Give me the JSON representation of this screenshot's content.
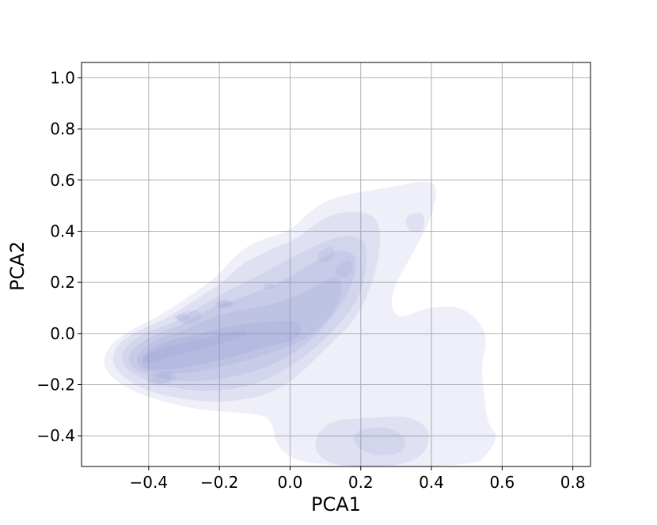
{
  "chart_data": {
    "type": "kde-contour",
    "title": "",
    "xlabel": "PCA1",
    "ylabel": "PCA2",
    "xlim": [
      -0.59,
      0.85
    ],
    "ylim": [
      -0.52,
      1.06
    ],
    "xticks": [
      -0.4,
      -0.2,
      0.0,
      0.2,
      0.4,
      0.6,
      0.8
    ],
    "xtick_labels": [
      "−0.4",
      "−0.2",
      "0.0",
      "0.2",
      "0.4",
      "0.6",
      "0.8"
    ],
    "yticks": [
      -0.4,
      -0.2,
      0.0,
      0.2,
      0.4,
      0.6,
      0.8,
      1.0
    ],
    "ytick_labels": [
      "−0.4",
      "−0.2",
      "0.0",
      "0.2",
      "0.4",
      "0.6",
      "0.8",
      "1.0"
    ],
    "grid": true,
    "fill_color": "#8a8fcc",
    "level_opacity": 0.14,
    "levels": [
      {
        "regions": [
          [
            [
              -0.52,
              -0.06
            ],
            [
              -0.47,
              0.0
            ],
            [
              -0.38,
              0.06
            ],
            [
              -0.28,
              0.15
            ],
            [
              -0.2,
              0.23
            ],
            [
              -0.16,
              0.3
            ],
            [
              -0.1,
              0.36
            ],
            [
              0.0,
              0.4
            ],
            [
              0.05,
              0.47
            ],
            [
              0.1,
              0.52
            ],
            [
              0.18,
              0.55
            ],
            [
              0.28,
              0.57
            ],
            [
              0.38,
              0.6
            ],
            [
              0.42,
              0.58
            ],
            [
              0.4,
              0.45
            ],
            [
              0.35,
              0.32
            ],
            [
              0.28,
              0.15
            ],
            [
              0.3,
              0.05
            ],
            [
              0.38,
              0.1
            ],
            [
              0.47,
              0.11
            ],
            [
              0.53,
              0.06
            ],
            [
              0.56,
              -0.02
            ],
            [
              0.54,
              -0.12
            ],
            [
              0.55,
              -0.25
            ],
            [
              0.56,
              -0.36
            ],
            [
              0.59,
              -0.4
            ],
            [
              0.56,
              -0.47
            ],
            [
              0.52,
              -0.52
            ],
            [
              0.05,
              -0.52
            ],
            [
              -0.04,
              -0.45
            ],
            [
              -0.05,
              -0.33
            ],
            [
              -0.12,
              -0.31
            ],
            [
              -0.25,
              -0.3
            ],
            [
              -0.35,
              -0.27
            ],
            [
              -0.46,
              -0.22
            ],
            [
              -0.53,
              -0.14
            ]
          ]
        ]
      },
      {
        "regions": [
          [
            [
              -0.5,
              -0.06
            ],
            [
              -0.45,
              0.0
            ],
            [
              -0.36,
              0.05
            ],
            [
              -0.27,
              0.13
            ],
            [
              -0.19,
              0.2
            ],
            [
              -0.14,
              0.27
            ],
            [
              -0.07,
              0.32
            ],
            [
              0.02,
              0.37
            ],
            [
              0.08,
              0.44
            ],
            [
              0.15,
              0.48
            ],
            [
              0.24,
              0.47
            ],
            [
              0.26,
              0.38
            ],
            [
              0.24,
              0.22
            ],
            [
              0.19,
              0.06
            ],
            [
              0.1,
              -0.06
            ],
            [
              0.02,
              -0.17
            ],
            [
              -0.06,
              -0.24
            ],
            [
              -0.18,
              -0.27
            ],
            [
              -0.3,
              -0.26
            ],
            [
              -0.42,
              -0.22
            ],
            [
              -0.5,
              -0.14
            ]
          ],
          [
            [
              0.1,
              -0.34
            ],
            [
              0.22,
              -0.33
            ],
            [
              0.34,
              -0.32
            ],
            [
              0.4,
              -0.38
            ],
            [
              0.38,
              -0.48
            ],
            [
              0.3,
              -0.52
            ],
            [
              0.12,
              -0.52
            ],
            [
              0.06,
              -0.45
            ]
          ],
          [
            [
              0.32,
              0.46
            ],
            [
              0.38,
              0.48
            ],
            [
              0.38,
              0.4
            ],
            [
              0.34,
              0.39
            ]
          ]
        ]
      },
      {
        "regions": [
          [
            [
              -0.48,
              -0.07
            ],
            [
              -0.42,
              0.0
            ],
            [
              -0.33,
              0.04
            ],
            [
              -0.25,
              0.11
            ],
            [
              -0.17,
              0.17
            ],
            [
              -0.1,
              0.22
            ],
            [
              -0.03,
              0.27
            ],
            [
              0.05,
              0.33
            ],
            [
              0.13,
              0.38
            ],
            [
              0.21,
              0.38
            ],
            [
              0.22,
              0.28
            ],
            [
              0.2,
              0.15
            ],
            [
              0.15,
              0.05
            ],
            [
              0.07,
              -0.06
            ],
            [
              -0.02,
              -0.15
            ],
            [
              -0.12,
              -0.21
            ],
            [
              -0.25,
              -0.23
            ],
            [
              -0.38,
              -0.2
            ],
            [
              -0.47,
              -0.14
            ]
          ],
          [
            [
              0.18,
              -0.38
            ],
            [
              0.26,
              -0.36
            ],
            [
              0.33,
              -0.4
            ],
            [
              0.32,
              -0.47
            ],
            [
              0.24,
              -0.48
            ],
            [
              0.18,
              -0.44
            ]
          ]
        ]
      },
      {
        "regions": [
          [
            [
              -0.46,
              -0.08
            ],
            [
              -0.4,
              -0.01
            ],
            [
              -0.31,
              0.03
            ],
            [
              -0.24,
              0.09
            ],
            [
              -0.16,
              0.13
            ],
            [
              -0.08,
              0.17
            ],
            [
              0.0,
              0.22
            ],
            [
              0.08,
              0.29
            ],
            [
              0.14,
              0.33
            ],
            [
              0.19,
              0.31
            ],
            [
              0.18,
              0.2
            ],
            [
              0.14,
              0.1
            ],
            [
              0.08,
              0.0
            ],
            [
              0.0,
              -0.09
            ],
            [
              -0.1,
              -0.15
            ],
            [
              -0.24,
              -0.19
            ],
            [
              -0.36,
              -0.18
            ],
            [
              -0.45,
              -0.14
            ]
          ]
        ]
      },
      {
        "regions": [
          [
            [
              -0.44,
              -0.09
            ],
            [
              -0.38,
              -0.02
            ],
            [
              -0.3,
              0.01
            ],
            [
              -0.23,
              0.06
            ],
            [
              -0.15,
              0.09
            ],
            [
              -0.06,
              0.11
            ],
            [
              0.03,
              0.15
            ],
            [
              0.09,
              0.2
            ],
            [
              0.14,
              0.23
            ],
            [
              0.15,
              0.15
            ],
            [
              0.11,
              0.06
            ],
            [
              0.05,
              -0.02
            ],
            [
              -0.04,
              -0.07
            ],
            [
              -0.16,
              -0.12
            ],
            [
              -0.3,
              -0.16
            ],
            [
              -0.42,
              -0.15
            ]
          ],
          [
            [
              -0.33,
              0.07
            ],
            [
              -0.27,
              0.1
            ],
            [
              -0.24,
              0.06
            ],
            [
              -0.3,
              0.03
            ]
          ],
          [
            [
              0.12,
              0.25
            ],
            [
              0.17,
              0.3
            ],
            [
              0.18,
              0.24
            ],
            [
              0.14,
              0.21
            ]
          ]
        ]
      },
      {
        "regions": [
          [
            [
              -0.43,
              -0.1
            ],
            [
              -0.36,
              -0.03
            ],
            [
              -0.28,
              -0.01
            ],
            [
              -0.2,
              0.02
            ],
            [
              -0.12,
              0.04
            ],
            [
              -0.04,
              0.05
            ],
            [
              0.03,
              0.05
            ],
            [
              0.03,
              -0.02
            ],
            [
              -0.06,
              -0.05
            ],
            [
              -0.16,
              -0.09
            ],
            [
              -0.28,
              -0.13
            ],
            [
              -0.4,
              -0.15
            ]
          ],
          [
            [
              -0.4,
              -0.16
            ],
            [
              -0.34,
              -0.14
            ],
            [
              -0.31,
              -0.18
            ],
            [
              -0.37,
              -0.21
            ],
            [
              -0.41,
              -0.19
            ]
          ],
          [
            [
              -0.22,
              0.12
            ],
            [
              -0.18,
              0.14
            ],
            [
              -0.15,
              0.11
            ],
            [
              -0.2,
              0.09
            ]
          ],
          [
            [
              -0.33,
              0.07
            ],
            [
              -0.29,
              0.08
            ],
            [
              -0.28,
              0.05
            ],
            [
              -0.32,
              0.05
            ]
          ],
          [
            [
              -0.08,
              0.19
            ],
            [
              -0.05,
              0.2
            ],
            [
              -0.04,
              0.18
            ],
            [
              -0.07,
              0.17
            ]
          ],
          [
            [
              0.07,
              0.31
            ],
            [
              0.12,
              0.35
            ],
            [
              0.13,
              0.3
            ],
            [
              0.09,
              0.27
            ]
          ]
        ]
      },
      {
        "regions": [
          [
            [
              -0.42,
              -0.09
            ],
            [
              -0.35,
              -0.05
            ],
            [
              -0.27,
              -0.03
            ],
            [
              -0.19,
              0.0
            ],
            [
              -0.13,
              0.02
            ],
            [
              -0.12,
              -0.01
            ],
            [
              -0.2,
              -0.04
            ],
            [
              -0.28,
              -0.07
            ],
            [
              -0.36,
              -0.1
            ],
            [
              -0.41,
              -0.12
            ]
          ],
          [
            [
              -0.39,
              -0.17
            ],
            [
              -0.35,
              -0.15
            ],
            [
              -0.33,
              -0.18
            ],
            [
              -0.37,
              -0.2
            ],
            [
              -0.4,
              -0.19
            ]
          ],
          [
            [
              -0.21,
              0.12
            ],
            [
              -0.18,
              0.13
            ],
            [
              -0.16,
              0.11
            ],
            [
              -0.2,
              0.1
            ]
          ]
        ]
      }
    ]
  }
}
